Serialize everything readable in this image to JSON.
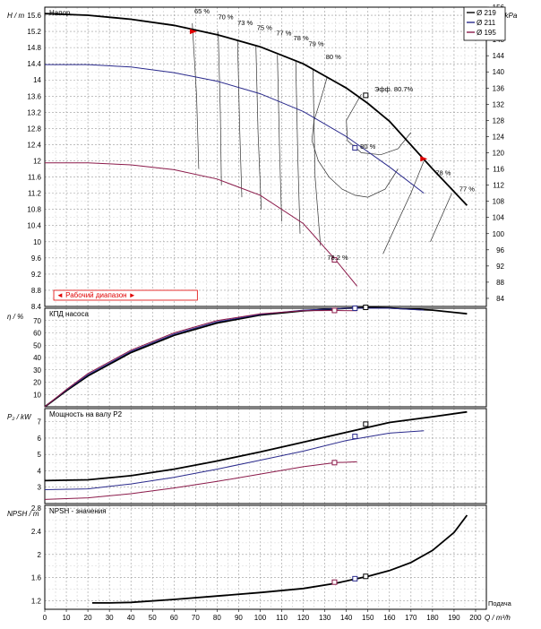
{
  "chart_data": {
    "type": "line",
    "x_axis": {
      "label": "Q / m³/h",
      "caption": "Подача",
      "ticks": [
        0,
        10,
        20,
        30,
        40,
        50,
        60,
        70,
        80,
        90,
        100,
        110,
        120,
        130,
        140,
        150,
        160,
        170,
        180,
        190,
        200
      ],
      "range": [
        0,
        205
      ]
    },
    "legend": {
      "placement": "top-right",
      "entries": [
        {
          "name": "Ø 219",
          "color": "#000000"
        },
        {
          "name": "Ø 211",
          "color": "#2a2a8c"
        },
        {
          "name": "Ø 195",
          "color": "#8b1a4a"
        }
      ]
    },
    "panels": [
      {
        "id": "head",
        "title": "Напор",
        "ylabel": "H / m",
        "ylabel_right": "Δp / kPa",
        "yrange": [
          8.4,
          15.8
        ],
        "yticks": [
          "8.4",
          "8.8",
          "9.2",
          "9.6",
          "10",
          "10.4",
          "10.8",
          "11.2",
          "11.6",
          "12",
          "12.4",
          "12.8",
          "13.2",
          "13.6",
          "14",
          "14.4",
          "14.8",
          "15.2",
          "15.6"
        ],
        "yticks_right_range": [
          82,
          156
        ],
        "yticks_right": [
          "84",
          "88",
          "92",
          "96",
          "100",
          "104",
          "108",
          "112",
          "116",
          "120",
          "124",
          "128",
          "132",
          "136",
          "140",
          "144",
          "148",
          "152",
          "156"
        ],
        "series": [
          {
            "legend": "Ø 219",
            "color": "#000000",
            "x": [
              0,
              20,
              40,
              60,
              80,
              100,
              120,
              140,
              150,
              160,
              180,
              196
            ],
            "y": [
              15.64,
              15.6,
              15.5,
              15.35,
              15.12,
              14.82,
              14.4,
              13.8,
              13.42,
              12.98,
              11.8,
              10.9
            ]
          },
          {
            "legend": "Ø 211",
            "color": "#2a2a8c",
            "x": [
              0,
              20,
              40,
              60,
              80,
              100,
              120,
              140,
              160,
              176
            ],
            "y": [
              14.38,
              14.38,
              14.32,
              14.18,
              13.97,
              13.66,
              13.22,
              12.6,
              11.85,
              11.2
            ]
          },
          {
            "legend": "Ø 195",
            "color": "#8b1a4a",
            "x": [
              0,
              20,
              40,
              60,
              80,
              100,
              120,
              135,
              145
            ],
            "y": [
              11.95,
              11.95,
              11.9,
              11.78,
              11.55,
              11.15,
              10.45,
              9.55,
              8.9
            ]
          }
        ],
        "efficiency_lines": [
          {
            "label": "65 %",
            "x": [
              68.5,
              70.5,
              71.5
            ],
            "y": [
              15.4,
              13.6,
              11.8
            ]
          },
          {
            "label": "70 %",
            "x": [
              80.5,
              81.5,
              82
            ],
            "y": [
              15.2,
              13.2,
              11.4
            ]
          },
          {
            "label": "73 %",
            "x": [
              89.5,
              90.5,
              91.5
            ],
            "y": [
              15.0,
              12.8,
              11.1
            ]
          },
          {
            "label": "75 %",
            "x": [
              98,
              99,
              100.5
            ],
            "y": [
              14.85,
              12.7,
              10.8
            ]
          },
          {
            "label": "77 %",
            "x": [
              108,
              109,
              110
            ],
            "y": [
              14.62,
              12.3,
              10.5
            ]
          },
          {
            "label": "78 %",
            "x": [
              116.5,
              117.5,
              118.5
            ],
            "y": [
              14.45,
              12.0,
              10.2
            ]
          },
          {
            "label": "79 %",
            "x": [
              124.5,
              125.5,
              128
            ],
            "y": [
              14.25,
              11.6,
              9.9
            ]
          },
          {
            "label": "80 %",
            "x": [
              131,
              128,
              125,
              124,
              127,
              132,
              138,
              144,
              150,
              158,
              164
            ],
            "y": [
              14.05,
              13.5,
              13.0,
              12.5,
              12.0,
              11.6,
              11.3,
              11.15,
              11.1,
              11.3,
              11.8
            ]
          },
          {
            "label": "80.7 %",
            "x": [
              147,
              140,
              140.5,
              147,
              156,
              164,
              170
            ],
            "y": [
              13.65,
              13.0,
              12.5,
              12.2,
              12.15,
              12.3,
              12.7
            ]
          },
          {
            "label": "78 %",
            "x": [
              176,
              170,
              163,
              157
            ],
            "y": [
              12.0,
              11.2,
              10.4,
              9.7
            ]
          },
          {
            "label": "77 %",
            "x": [
              189,
              184,
              179
            ],
            "y": [
              11.2,
              10.6,
              10.0
            ]
          }
        ],
        "annotations": [
          {
            "text": "65 %",
            "x": 73,
            "y": 15.65
          },
          {
            "text": "70 %",
            "x": 84,
            "y": 15.5
          },
          {
            "text": "73 %",
            "x": 93,
            "y": 15.36
          },
          {
            "text": "75 %",
            "x": 102,
            "y": 15.24
          },
          {
            "text": "77 %",
            "x": 111,
            "y": 15.1
          },
          {
            "text": "78 %",
            "x": 119,
            "y": 14.98
          },
          {
            "text": "79 %",
            "x": 126,
            "y": 14.84
          },
          {
            "text": "80 %",
            "x": 134,
            "y": 14.52
          },
          {
            "text": "80 %",
            "x": 150,
            "y": 12.3
          },
          {
            "text": "78.2 %",
            "x": 136,
            "y": 9.55
          },
          {
            "text": "78 %",
            "x": 185,
            "y": 11.65
          },
          {
            "text": "77 %",
            "x": 196,
            "y": 11.25
          },
          {
            "text": "Эфф.  80.7%",
            "x": 162,
            "y": 13.72
          }
        ],
        "operating_points": [
          {
            "x": 149,
            "y": 13.62,
            "color": "#000000"
          },
          {
            "x": 144,
            "y": 12.32,
            "color": "#2a2a8c"
          },
          {
            "x": 134.5,
            "y": 9.55,
            "color": "#8b1a4a"
          }
        ],
        "range_markers": [
          {
            "x": 69,
            "y": 15.2,
            "color": "#e00000"
          },
          {
            "x": 176,
            "y": 12.05,
            "color": "#e00000"
          }
        ],
        "working_range_label": "◄ Рабочий диапазон ►"
      },
      {
        "id": "efficiency",
        "title": "КПД насоса",
        "ylabel": "η / %",
        "yrange": [
          0,
          80
        ],
        "yticks": [
          "10",
          "20",
          "30",
          "40",
          "50",
          "60",
          "70"
        ],
        "series": [
          {
            "legend": "Ø 219",
            "color": "#000000",
            "x": [
              0,
              10,
              20,
              40,
              60,
              80,
              100,
              120,
              140,
              150,
              160,
              180,
              196
            ],
            "y": [
              0,
              13,
              25,
              44,
              58,
              68,
              74.5,
              78,
              80,
              80.5,
              80.3,
              78.5,
              75.5
            ]
          },
          {
            "legend": "Ø 211",
            "color": "#2a2a8c",
            "x": [
              0,
              10,
              20,
              40,
              60,
              80,
              100,
              120,
              140,
              160,
              176
            ],
            "y": [
              0,
              13.5,
              26,
              45,
              59,
              69,
              75,
              78.5,
              80,
              80,
              78.5
            ]
          },
          {
            "legend": "Ø 195",
            "color": "#8b1a4a",
            "x": [
              0,
              10,
              20,
              40,
              60,
              80,
              100,
              120,
              135,
              145
            ],
            "y": [
              0,
              14,
              27,
              46,
              60,
              70,
              75.5,
              78,
              78.2,
              78
            ]
          }
        ],
        "operating_points": [
          {
            "x": 149,
            "y": 80.7,
            "color": "#000000"
          },
          {
            "x": 144,
            "y": 80,
            "color": "#2a2a8c"
          },
          {
            "x": 134.5,
            "y": 78.2,
            "color": "#8b1a4a"
          }
        ]
      },
      {
        "id": "power",
        "title": "Мощность на валу P2",
        "ylabel": "P₂ / kW",
        "yrange": [
          2,
          7.8
        ],
        "yticks": [
          "3",
          "4",
          "5",
          "6",
          "7"
        ],
        "series": [
          {
            "legend": "Ø 219",
            "color": "#000000",
            "x": [
              0,
              20,
              40,
              60,
              80,
              100,
              120,
              140,
              150,
              160,
              180,
              196
            ],
            "y": [
              3.4,
              3.45,
              3.7,
              4.1,
              4.6,
              5.15,
              5.75,
              6.35,
              6.65,
              6.95,
              7.3,
              7.6
            ]
          },
          {
            "legend": "Ø 211",
            "color": "#2a2a8c",
            "x": [
              0,
              20,
              40,
              60,
              80,
              100,
              120,
              140,
              160,
              176
            ],
            "y": [
              2.85,
              2.9,
              3.2,
              3.6,
              4.1,
              4.65,
              5.2,
              5.85,
              6.3,
              6.45
            ]
          },
          {
            "legend": "Ø 195",
            "color": "#8b1a4a",
            "x": [
              0,
              20,
              40,
              60,
              80,
              100,
              120,
              135,
              145
            ],
            "y": [
              2.25,
              2.35,
              2.6,
              2.95,
              3.35,
              3.8,
              4.25,
              4.5,
              4.55
            ]
          }
        ],
        "operating_points": [
          {
            "x": 149,
            "y": 6.85,
            "color": "#000000"
          },
          {
            "x": 144,
            "y": 6.1,
            "color": "#2a2a8c"
          },
          {
            "x": 134.5,
            "y": 4.5,
            "color": "#8b1a4a"
          }
        ]
      },
      {
        "id": "npsh",
        "title": "NPSH - значения",
        "ylabel": "NPSH / m",
        "yrange": [
          1.05,
          2.85
        ],
        "yticks": [
          "1.2",
          "1.6",
          "2",
          "2.4",
          "2.8"
        ],
        "series": [
          {
            "legend": "NPSH",
            "color": "#000000",
            "x": [
              22,
              30,
              40,
              60,
              80,
              100,
              120,
              135,
              145,
              150,
              160,
              170,
              180,
              190,
              196
            ],
            "y": [
              1.16,
              1.16,
              1.17,
              1.22,
              1.28,
              1.34,
              1.41,
              1.5,
              1.58,
              1.62,
              1.72,
              1.86,
              2.07,
              2.38,
              2.68
            ]
          }
        ],
        "operating_points": [
          {
            "x": 149,
            "y": 1.62,
            "color": "#000000"
          },
          {
            "x": 144,
            "y": 1.58,
            "color": "#2a2a8c"
          },
          {
            "x": 134.5,
            "y": 1.52,
            "color": "#8b1a4a"
          }
        ]
      }
    ]
  }
}
